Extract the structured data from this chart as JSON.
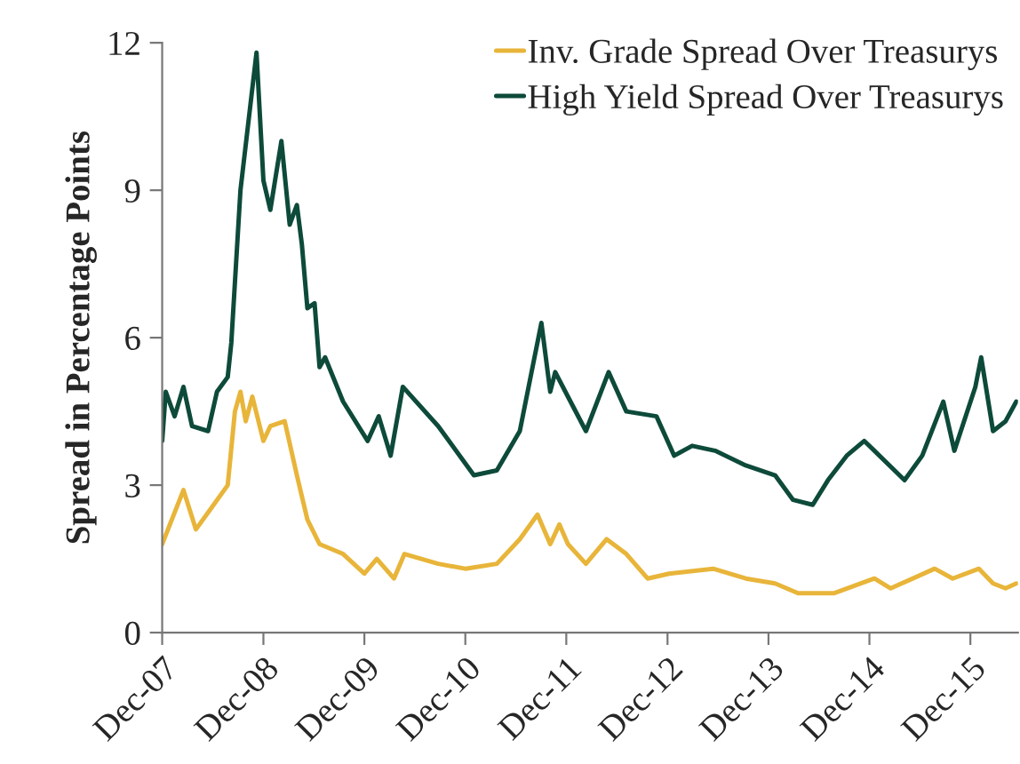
{
  "chart_data": {
    "type": "line",
    "ylabel": "Spread in Percentage Points",
    "xlim": [
      "2007-12-01",
      "2016-05-21"
    ],
    "xticks": [
      {
        "value": "2007-12-01",
        "label": "Dec-07"
      },
      {
        "value": "2008-12-01",
        "label": "Dec-08"
      },
      {
        "value": "2009-12-01",
        "label": "Dec-09"
      },
      {
        "value": "2010-12-01",
        "label": "Dec-10"
      },
      {
        "value": "2011-12-01",
        "label": "Dec-11"
      },
      {
        "value": "2012-12-01",
        "label": "Dec-12"
      },
      {
        "value": "2013-12-01",
        "label": "Dec-13"
      },
      {
        "value": "2014-12-01",
        "label": "Dec-14"
      },
      {
        "value": "2015-12-01",
        "label": "Dec-15"
      }
    ],
    "ylim": [
      0,
      12
    ],
    "yticks": [
      0,
      3,
      6,
      9,
      12
    ],
    "grid": false,
    "legend": "top right",
    "marker": "none",
    "line_style": "solid",
    "series": [
      {
        "name": "Inv. Grade Spread Over Treasurys",
        "color": "#e8b53a",
        "x": [
          "2007-12-01",
          "2008-02-16",
          "2008-04-01",
          "2008-06-04",
          "2008-07-25",
          "2008-08-20",
          "2008-09-09",
          "2008-09-28",
          "2008-10-22",
          "2008-12-01",
          "2008-12-26",
          "2009-02-16",
          "2009-04-01",
          "2009-05-09",
          "2009-06-22",
          "2009-09-15",
          "2009-12-01",
          "2010-01-15",
          "2010-03-18",
          "2010-04-25",
          "2010-08-25",
          "2010-12-01",
          "2011-03-25",
          "2011-06-16",
          "2011-08-19",
          "2011-10-04",
          "2011-11-06",
          "2011-12-07",
          "2012-02-10",
          "2012-04-25",
          "2012-07-05",
          "2012-09-20",
          "2012-12-07",
          "2013-05-15",
          "2013-09-10",
          "2013-12-25",
          "2014-03-18",
          "2014-07-25",
          "2014-12-19",
          "2015-02-16",
          "2015-07-25",
          "2015-09-28",
          "2016-01-01",
          "2016-02-21",
          "2016-04-06",
          "2016-05-15"
        ],
        "values": [
          1.8,
          2.9,
          2.1,
          2.6,
          3.0,
          4.5,
          4.9,
          4.3,
          4.8,
          3.9,
          4.2,
          4.3,
          3.2,
          2.3,
          1.8,
          1.6,
          1.2,
          1.5,
          1.1,
          1.6,
          1.4,
          1.3,
          1.4,
          1.9,
          2.4,
          1.8,
          2.2,
          1.8,
          1.4,
          1.9,
          1.6,
          1.1,
          1.2,
          1.3,
          1.1,
          1.0,
          0.8,
          0.8,
          1.1,
          0.9,
          1.3,
          1.1,
          1.3,
          1.0,
          0.9,
          1.0
        ]
      },
      {
        "name": "High Yield Spread Over Treasurys",
        "color": "#0d4a3a",
        "x": [
          "2007-12-01",
          "2007-12-14",
          "2008-01-15",
          "2008-02-16",
          "2008-03-18",
          "2008-05-15",
          "2008-06-16",
          "2008-07-25",
          "2008-08-07",
          "2008-09-09",
          "2008-11-06",
          "2008-12-01",
          "2008-12-26",
          "2009-02-04",
          "2009-03-06",
          "2009-04-01",
          "2009-04-19",
          "2009-05-09",
          "2009-06-04",
          "2009-06-22",
          "2009-07-12",
          "2009-09-15",
          "2009-12-13",
          "2010-01-22",
          "2010-03-06",
          "2010-04-19",
          "2010-08-25",
          "2011-01-01",
          "2011-03-25",
          "2011-06-16",
          "2011-08-01",
          "2011-09-02",
          "2011-10-04",
          "2011-10-22",
          "2011-12-07",
          "2012-02-10",
          "2012-05-02",
          "2012-07-05",
          "2012-10-22",
          "2012-12-25",
          "2013-02-28",
          "2013-05-22",
          "2013-09-10",
          "2013-12-25",
          "2014-02-28",
          "2014-05-10",
          "2014-07-04",
          "2014-09-10",
          "2014-11-12",
          "2014-12-19",
          "2015-04-07",
          "2015-06-10",
          "2015-08-25",
          "2015-10-04",
          "2015-12-19",
          "2016-01-09",
          "2016-02-21",
          "2016-04-06",
          "2016-05-15"
        ],
        "values": [
          3.9,
          4.9,
          4.4,
          5.0,
          4.2,
          4.1,
          4.9,
          5.2,
          5.9,
          9.0,
          11.8,
          9.2,
          8.6,
          10.0,
          8.3,
          8.7,
          7.9,
          6.6,
          6.7,
          5.4,
          5.6,
          4.7,
          3.9,
          4.4,
          3.6,
          5.0,
          4.2,
          3.2,
          3.3,
          4.1,
          5.4,
          6.3,
          4.9,
          5.3,
          4.8,
          4.1,
          5.3,
          4.5,
          4.4,
          3.6,
          3.8,
          3.7,
          3.4,
          3.2,
          2.7,
          2.6,
          3.1,
          3.6,
          3.9,
          3.7,
          3.1,
          3.6,
          4.7,
          3.7,
          5.0,
          5.6,
          4.1,
          4.3,
          4.7
        ]
      }
    ]
  }
}
